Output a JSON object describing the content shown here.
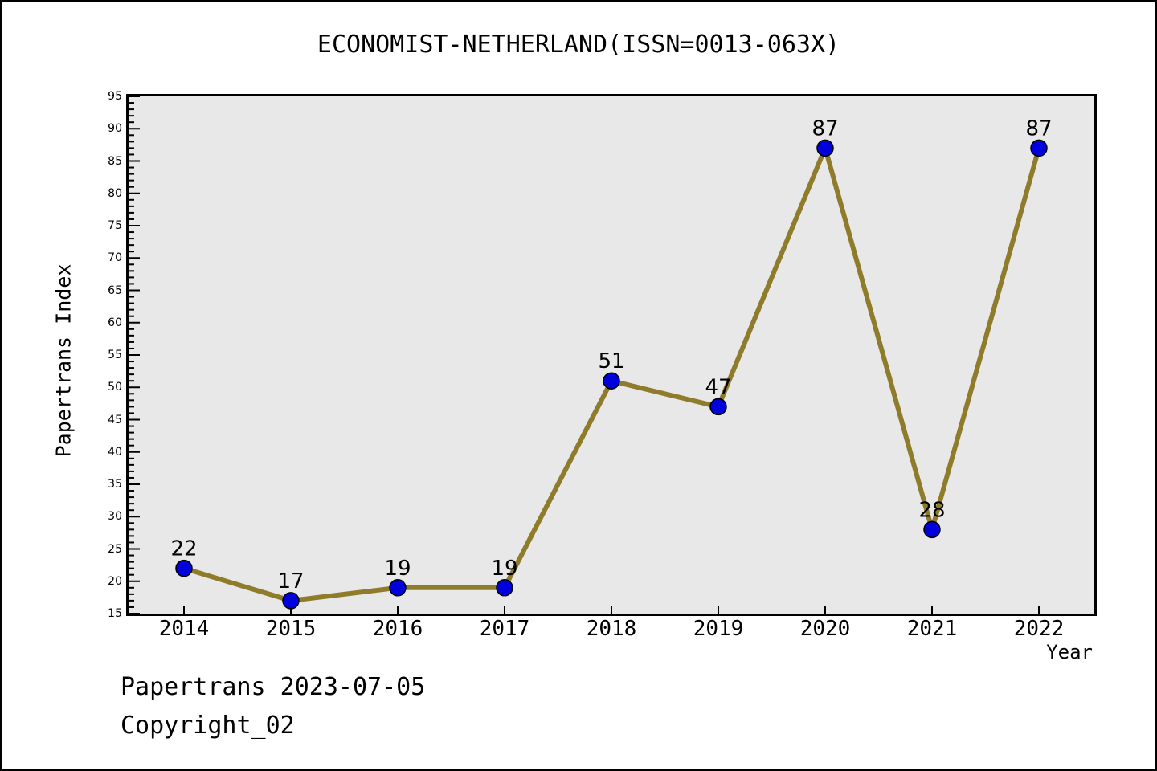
{
  "page": {
    "title": "ECONOMIST-NETHERLAND(ISSN=0013-063X)"
  },
  "chart_data": {
    "type": "line",
    "title": "ECONOMIST-NETHERLAND(ISSN=0013-063X)",
    "x": [
      2014,
      2015,
      2016,
      2017,
      2018,
      2019,
      2020,
      2021,
      2022
    ],
    "values": [
      22,
      17,
      19,
      19,
      51,
      47,
      87,
      28,
      87
    ],
    "point_labels": [
      "22",
      "17",
      "19",
      "19",
      "51",
      "47",
      "87",
      "28",
      "87"
    ],
    "xlabel": "Year",
    "ylabel": "Papertrans Index",
    "ylim": [
      15,
      95
    ],
    "ytick_major_step": 5,
    "ytick_minor_step": 1,
    "grid": false,
    "legend_position": "none",
    "line_color": "#8f7c2b",
    "marker_color": "#0000dd",
    "marker_edge_color": "#000000",
    "plot_background": "#e8e8e8",
    "axis_color": "#000000",
    "text_color": "#000000"
  },
  "footer": {
    "line1": "Papertrans 2023-07-05",
    "line2": "Copyright_02"
  }
}
